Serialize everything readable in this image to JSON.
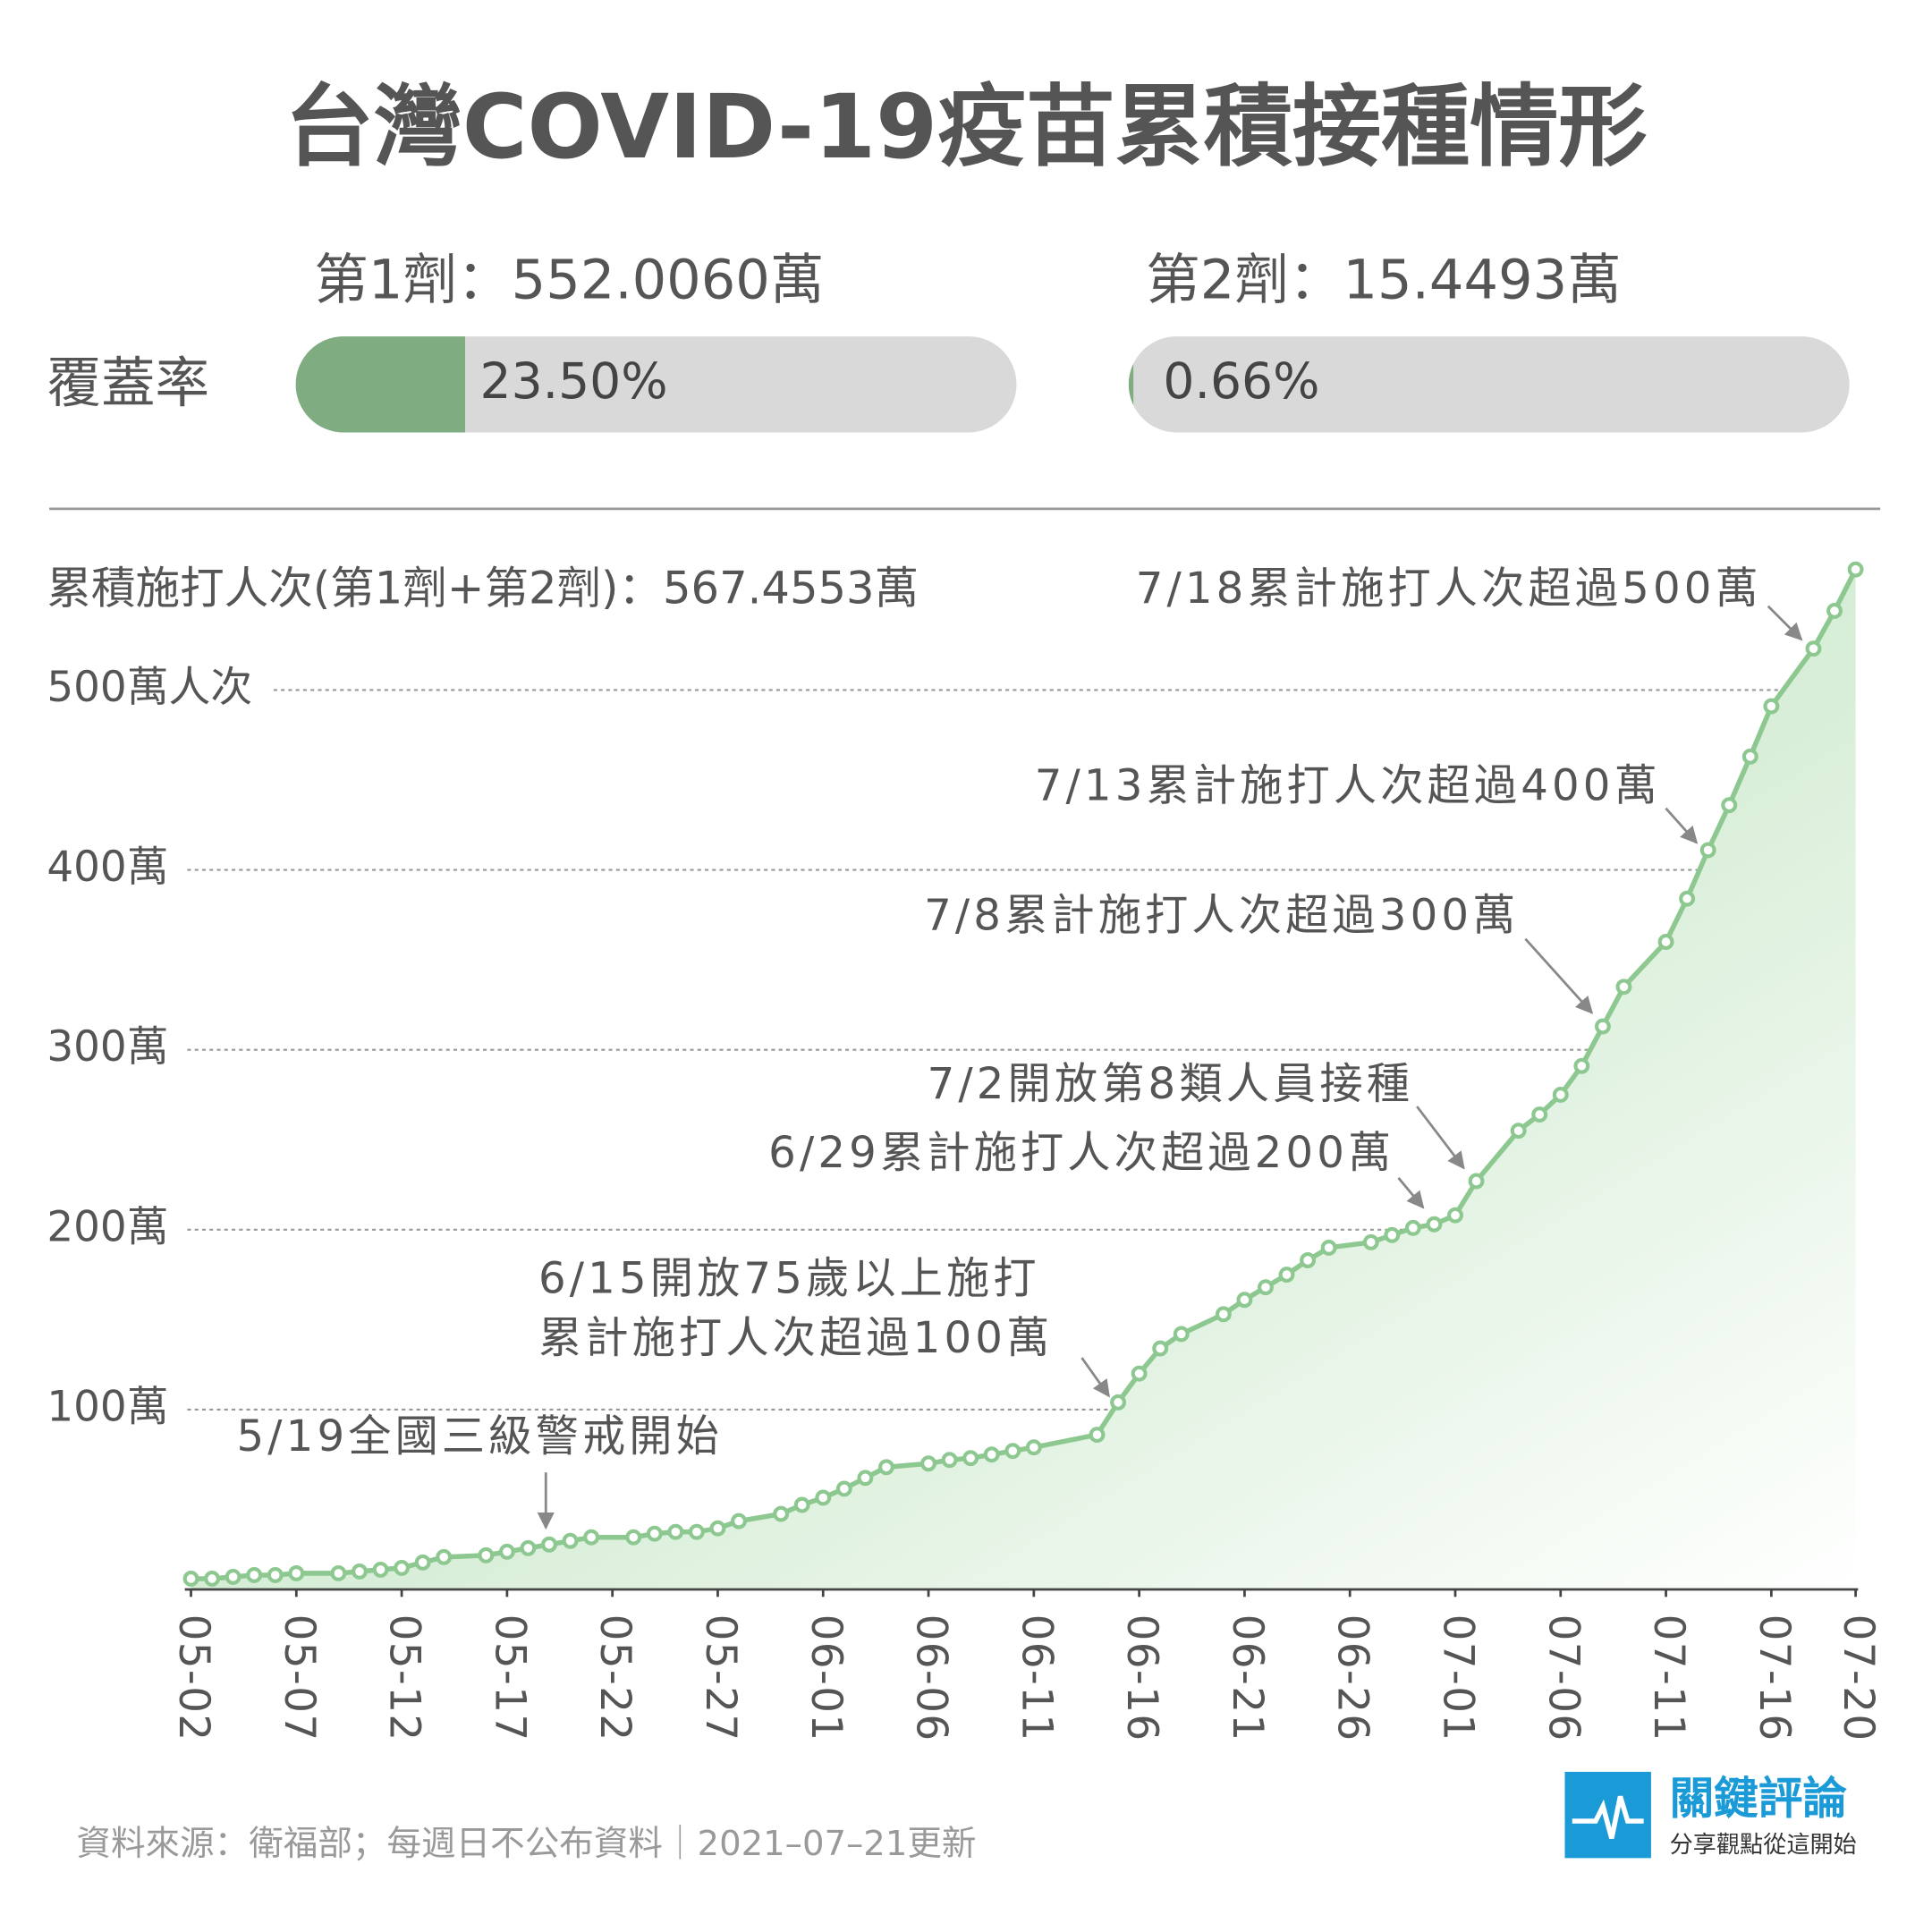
{
  "header": {
    "title": "台灣COVID-19疫苗累積接種情形",
    "dose1": "第1劑：552.0060萬",
    "dose2": "第2劑：15.4493萬",
    "coverage_label": "覆蓋率",
    "coverage": {
      "values": [
        23.5,
        0.66
      ],
      "value_labels": [
        "23.50%",
        "0.66%"
      ]
    }
  },
  "chart_data": {
    "type": "line",
    "subtitle": "累積施打人次(第1劑+第2劑)：567.4553萬",
    "color": "#8dc891",
    "x": [
      "05-02",
      "05-03",
      "05-04",
      "05-05",
      "05-06",
      "05-07",
      "05-09",
      "05-10",
      "05-11",
      "05-12",
      "05-13",
      "05-14",
      "05-16",
      "05-17",
      "05-18",
      "05-19",
      "05-20",
      "05-21",
      "05-23",
      "05-24",
      "05-25",
      "05-26",
      "05-27",
      "05-28",
      "05-30",
      "05-31",
      "06-01",
      "06-02",
      "06-03",
      "06-04",
      "06-06",
      "06-07",
      "06-08",
      "06-09",
      "06-10",
      "06-11",
      "06-14",
      "06-15",
      "06-16",
      "06-17",
      "06-18",
      "06-20",
      "06-21",
      "06-22",
      "06-23",
      "06-24",
      "06-25",
      "06-27",
      "06-28",
      "06-29",
      "06-30",
      "07-01",
      "07-02",
      "07-04",
      "07-05",
      "07-06",
      "07-07",
      "07-08",
      "07-09",
      "07-11",
      "07-12",
      "07-13",
      "07-14",
      "07-15",
      "07-16",
      "07-18",
      "07-19",
      "07-20"
    ],
    "values": [
      6,
      6,
      7,
      8,
      8,
      9,
      9,
      10,
      11,
      12,
      15,
      18,
      19,
      21,
      23,
      25,
      27,
      29,
      29,
      31,
      32,
      32,
      34,
      38,
      42,
      47,
      51,
      56,
      62,
      68,
      70,
      72,
      73,
      75,
      77,
      79,
      86,
      104,
      120,
      134,
      142,
      153,
      161,
      168,
      175,
      183,
      190,
      193,
      197,
      201,
      203,
      208,
      227,
      255,
      264,
      275,
      291,
      313,
      335,
      360,
      384,
      411,
      436,
      463,
      491,
      523,
      544,
      567
    ],
    "ylim": [
      0,
      600
    ],
    "yticks": [
      {
        "value": 100,
        "label": "100萬"
      },
      {
        "value": 200,
        "label": "200萬"
      },
      {
        "value": 300,
        "label": "300萬"
      },
      {
        "value": 400,
        "label": "400萬"
      },
      {
        "value": 500,
        "label": "500萬人次"
      }
    ],
    "xticks": [
      "05-02",
      "05-07",
      "05-12",
      "05-17",
      "05-22",
      "05-27",
      "06-01",
      "06-06",
      "06-11",
      "06-16",
      "06-21",
      "06-26",
      "07-01",
      "07-06",
      "07-11",
      "07-16",
      "07-20"
    ],
    "grid": true,
    "annotations": [
      [
        "7/18累計施打人次超過500萬"
      ],
      [
        "7/13累計施打人次超過400萬"
      ],
      [
        "7/8累計施打人次超過300萬"
      ],
      [
        "7/2開放第8類人員接種"
      ],
      [
        "6/29累計施打人次超過200萬"
      ],
      [
        "6/15開放75歲以上施打",
        "累計施打人次超過100萬"
      ],
      [
        "5/19全國三級警戒開始"
      ]
    ]
  },
  "footer": {
    "source": "資料來源：衛福部；每週日不公布資料｜2021–07–21更新",
    "brand": "關鍵評論",
    "slogan": "分享觀點從這開始"
  }
}
